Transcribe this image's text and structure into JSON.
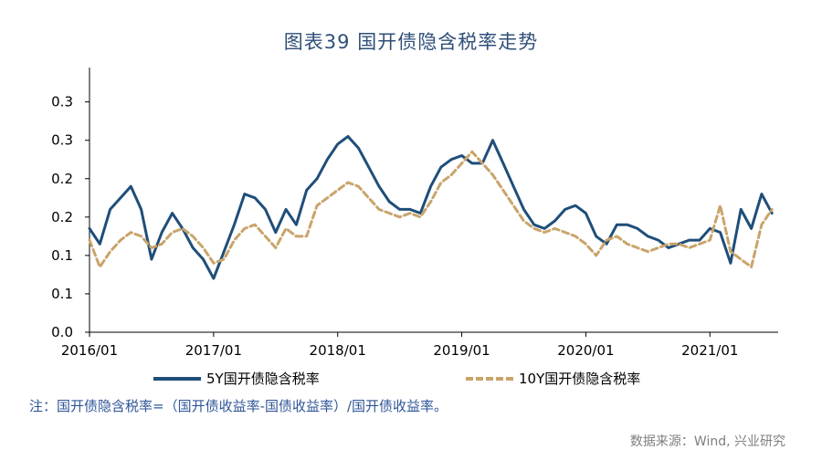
{
  "title": "图表39 国开债隐含税率走势",
  "note": "注：国开债隐含税率=（国开债收益率-国债收益率）/国开债收益率。",
  "source": "数据来源：Wind, 兴业研究",
  "colors": {
    "series1": "#1f4e79",
    "series2": "#c9a46a",
    "axis": "#000000",
    "title": "#2f4f78",
    "note": "#2f5597"
  },
  "chart_data": {
    "type": "line",
    "ylim": [
      0.0,
      0.34
    ],
    "y_ticks": [
      {
        "value": 0.0,
        "label": "0.0"
      },
      {
        "value": 0.05,
        "label": "0.1"
      },
      {
        "value": 0.1,
        "label": "0.1"
      },
      {
        "value": 0.15,
        "label": "0.2"
      },
      {
        "value": 0.2,
        "label": "0.2"
      },
      {
        "value": 0.25,
        "label": "0.3"
      },
      {
        "value": 0.3,
        "label": "0.3"
      }
    ],
    "x_range": [
      "2016-01",
      "2021-07"
    ],
    "x_ticks": [
      "2016/01",
      "2017/01",
      "2018/01",
      "2019/01",
      "2020/01",
      "2021/01"
    ],
    "legend_placement": "bottom",
    "series": [
      {
        "name": "5Y国开债隐含税率",
        "style": "solid",
        "points": [
          [
            "2016-01",
            0.135
          ],
          [
            "2016-02",
            0.115
          ],
          [
            "2016-03",
            0.16
          ],
          [
            "2016-04",
            0.175
          ],
          [
            "2016-05",
            0.19
          ],
          [
            "2016-06",
            0.16
          ],
          [
            "2016-07",
            0.095
          ],
          [
            "2016-08",
            0.13
          ],
          [
            "2016-09",
            0.155
          ],
          [
            "2016-10",
            0.135
          ],
          [
            "2016-11",
            0.11
          ],
          [
            "2016-12",
            0.095
          ],
          [
            "2017-01",
            0.07
          ],
          [
            "2017-02",
            0.105
          ],
          [
            "2017-03",
            0.14
          ],
          [
            "2017-04",
            0.18
          ],
          [
            "2017-05",
            0.175
          ],
          [
            "2017-06",
            0.16
          ],
          [
            "2017-07",
            0.13
          ],
          [
            "2017-08",
            0.16
          ],
          [
            "2017-09",
            0.14
          ],
          [
            "2017-10",
            0.185
          ],
          [
            "2017-11",
            0.2
          ],
          [
            "2017-12",
            0.225
          ],
          [
            "2018-01",
            0.245
          ],
          [
            "2018-02",
            0.255
          ],
          [
            "2018-03",
            0.24
          ],
          [
            "2018-04",
            0.215
          ],
          [
            "2018-05",
            0.19
          ],
          [
            "2018-06",
            0.17
          ],
          [
            "2018-07",
            0.16
          ],
          [
            "2018-08",
            0.16
          ],
          [
            "2018-09",
            0.155
          ],
          [
            "2018-10",
            0.19
          ],
          [
            "2018-11",
            0.215
          ],
          [
            "2018-12",
            0.225
          ],
          [
            "2019-01",
            0.23
          ],
          [
            "2019-02",
            0.22
          ],
          [
            "2019-03",
            0.22
          ],
          [
            "2019-04",
            0.25
          ],
          [
            "2019-05",
            0.22
          ],
          [
            "2019-06",
            0.19
          ],
          [
            "2019-07",
            0.16
          ],
          [
            "2019-08",
            0.14
          ],
          [
            "2019-09",
            0.135
          ],
          [
            "2019-10",
            0.145
          ],
          [
            "2019-11",
            0.16
          ],
          [
            "2019-12",
            0.165
          ],
          [
            "2020-01",
            0.155
          ],
          [
            "2020-02",
            0.125
          ],
          [
            "2020-03",
            0.115
          ],
          [
            "2020-04",
            0.14
          ],
          [
            "2020-05",
            0.14
          ],
          [
            "2020-06",
            0.135
          ],
          [
            "2020-07",
            0.125
          ],
          [
            "2020-08",
            0.12
          ],
          [
            "2020-09",
            0.11
          ],
          [
            "2020-10",
            0.115
          ],
          [
            "2020-11",
            0.12
          ],
          [
            "2020-12",
            0.12
          ],
          [
            "2021-01",
            0.135
          ],
          [
            "2021-02",
            0.13
          ],
          [
            "2021-03",
            0.09
          ],
          [
            "2021-04",
            0.16
          ],
          [
            "2021-05",
            0.135
          ],
          [
            "2021-06",
            0.18
          ],
          [
            "2021-07",
            0.155
          ]
        ]
      },
      {
        "name": "10Y国开债隐含税率",
        "style": "dashed",
        "points": [
          [
            "2016-01",
            0.12
          ],
          [
            "2016-02",
            0.085
          ],
          [
            "2016-03",
            0.105
          ],
          [
            "2016-04",
            0.12
          ],
          [
            "2016-05",
            0.13
          ],
          [
            "2016-06",
            0.125
          ],
          [
            "2016-07",
            0.11
          ],
          [
            "2016-08",
            0.115
          ],
          [
            "2016-09",
            0.13
          ],
          [
            "2016-10",
            0.135
          ],
          [
            "2016-11",
            0.125
          ],
          [
            "2016-12",
            0.11
          ],
          [
            "2017-01",
            0.09
          ],
          [
            "2017-02",
            0.095
          ],
          [
            "2017-03",
            0.12
          ],
          [
            "2017-04",
            0.135
          ],
          [
            "2017-05",
            0.14
          ],
          [
            "2017-06",
            0.125
          ],
          [
            "2017-07",
            0.11
          ],
          [
            "2017-08",
            0.135
          ],
          [
            "2017-09",
            0.125
          ],
          [
            "2017-10",
            0.125
          ],
          [
            "2017-11",
            0.165
          ],
          [
            "2017-12",
            0.175
          ],
          [
            "2018-01",
            0.185
          ],
          [
            "2018-02",
            0.195
          ],
          [
            "2018-03",
            0.19
          ],
          [
            "2018-04",
            0.175
          ],
          [
            "2018-05",
            0.16
          ],
          [
            "2018-06",
            0.155
          ],
          [
            "2018-07",
            0.15
          ],
          [
            "2018-08",
            0.155
          ],
          [
            "2018-09",
            0.15
          ],
          [
            "2018-10",
            0.17
          ],
          [
            "2018-11",
            0.195
          ],
          [
            "2018-12",
            0.205
          ],
          [
            "2019-01",
            0.22
          ],
          [
            "2019-02",
            0.235
          ],
          [
            "2019-03",
            0.22
          ],
          [
            "2019-04",
            0.205
          ],
          [
            "2019-05",
            0.185
          ],
          [
            "2019-06",
            0.165
          ],
          [
            "2019-07",
            0.145
          ],
          [
            "2019-08",
            0.135
          ],
          [
            "2019-09",
            0.13
          ],
          [
            "2019-10",
            0.135
          ],
          [
            "2019-11",
            0.13
          ],
          [
            "2019-12",
            0.125
          ],
          [
            "2020-01",
            0.115
          ],
          [
            "2020-02",
            0.1
          ],
          [
            "2020-03",
            0.12
          ],
          [
            "2020-04",
            0.125
          ],
          [
            "2020-05",
            0.115
          ],
          [
            "2020-06",
            0.11
          ],
          [
            "2020-07",
            0.105
          ],
          [
            "2020-08",
            0.11
          ],
          [
            "2020-09",
            0.115
          ],
          [
            "2020-10",
            0.115
          ],
          [
            "2020-11",
            0.11
          ],
          [
            "2020-12",
            0.115
          ],
          [
            "2021-01",
            0.12
          ],
          [
            "2021-02",
            0.165
          ],
          [
            "2021-03",
            0.105
          ],
          [
            "2021-04",
            0.095
          ],
          [
            "2021-05",
            0.085
          ],
          [
            "2021-06",
            0.14
          ],
          [
            "2021-07",
            0.16
          ]
        ]
      }
    ]
  }
}
